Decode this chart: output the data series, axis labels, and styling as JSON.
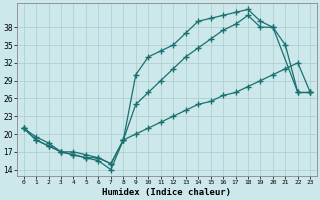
{
  "xlabel": "Humidex (Indice chaleur)",
  "bg_color": "#cce8ea",
  "grid_color": "#b0d0d4",
  "line_color": "#1a7070",
  "line1_x": [
    0,
    1,
    2,
    3,
    4,
    5,
    6,
    7,
    8,
    9,
    10,
    11,
    12,
    13,
    14,
    15,
    16,
    17,
    18,
    19,
    20,
    21,
    22,
    23
  ],
  "line1_y": [
    21,
    19,
    18,
    17,
    16.5,
    16,
    15.5,
    14,
    19,
    30,
    33,
    34,
    35,
    37,
    39,
    39.5,
    40,
    40.5,
    41,
    39,
    38,
    35,
    27,
    27
  ],
  "line2_x": [
    0,
    1,
    2,
    3,
    4,
    5,
    6,
    7,
    8,
    9,
    10,
    11,
    12,
    13,
    14,
    15,
    16,
    17,
    18,
    19,
    20,
    22,
    23
  ],
  "line2_y": [
    21,
    19,
    18,
    17,
    17,
    16.5,
    16,
    15,
    19,
    25,
    27,
    29,
    31,
    33,
    34.5,
    36,
    37.5,
    38.5,
    40,
    38,
    38,
    27,
    27
  ],
  "line3_x": [
    0,
    1,
    2,
    3,
    4,
    5,
    6,
    7,
    8,
    9,
    10,
    11,
    12,
    13,
    14,
    15,
    16,
    17,
    18,
    19,
    20,
    21,
    22,
    23
  ],
  "line3_y": [
    21,
    19.5,
    18.5,
    17,
    16.5,
    16,
    16,
    15,
    19,
    20,
    21,
    22,
    23,
    24,
    25,
    25.5,
    26.5,
    27,
    28,
    29,
    30,
    31,
    32,
    27
  ],
  "ylim": [
    13,
    42
  ],
  "xlim": [
    -0.5,
    23.5
  ],
  "yticks": [
    14,
    17,
    20,
    23,
    26,
    29,
    32,
    35,
    38
  ],
  "xticks": [
    0,
    1,
    2,
    3,
    4,
    5,
    6,
    7,
    8,
    9,
    10,
    11,
    12,
    13,
    14,
    15,
    16,
    17,
    18,
    19,
    20,
    21,
    22,
    23
  ]
}
